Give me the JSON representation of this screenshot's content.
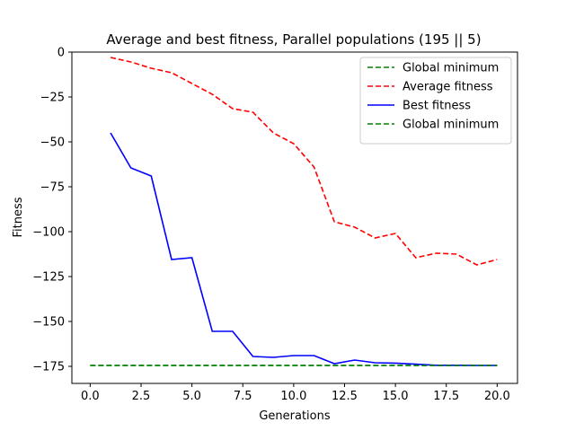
{
  "chart_data": {
    "type": "line",
    "title": "Average and best fitness, Parallel populations (195 || 5)",
    "xlabel": "Generations",
    "ylabel": "Fitness",
    "xlim": [
      -0.9,
      21.0
    ],
    "ylim": [
      -184.5,
      0
    ],
    "xticks": [
      0.0,
      2.5,
      5.0,
      7.5,
      10.0,
      12.5,
      15.0,
      17.5,
      20.0
    ],
    "xtick_labels": [
      "0.0",
      "2.5",
      "5.0",
      "7.5",
      "10.0",
      "12.5",
      "15.0",
      "17.5",
      "20.0"
    ],
    "yticks": [
      0,
      -25,
      -50,
      -75,
      -100,
      -125,
      -150,
      -175
    ],
    "ytick_labels": [
      "0",
      "−25",
      "−50",
      "−75",
      "−100",
      "−125",
      "−150",
      "−175"
    ],
    "grid": false,
    "legend_position": "top-right",
    "series": [
      {
        "name": "Global minimum",
        "color": "#008000",
        "dash": true,
        "x": [
          0,
          20
        ],
        "y": [
          -174.5,
          -174.5
        ]
      },
      {
        "name": "Average fitness",
        "color": "#ff0000",
        "dash": true,
        "x": [
          1,
          2,
          3,
          4,
          5,
          6,
          7,
          8,
          9,
          10,
          11,
          12,
          13,
          14,
          15,
          16,
          17,
          18,
          19,
          20
        ],
        "y": [
          -3,
          -5.5,
          -9,
          -11.5,
          -17.5,
          -23.5,
          -31.5,
          -33.5,
          -45,
          -51,
          -64,
          -94.5,
          -97.5,
          -103.5,
          -101,
          -114.5,
          -112,
          -112.5,
          -118.5,
          -115.5
        ]
      },
      {
        "name": "Best fitness",
        "color": "#0000ff",
        "dash": false,
        "x": [
          1,
          2,
          3,
          4,
          5,
          6,
          7,
          8,
          9,
          10,
          11,
          12,
          13,
          14,
          15,
          16,
          17,
          18,
          19,
          20
        ],
        "y": [
          -45,
          -64.5,
          -69,
          -115.5,
          -114.5,
          -155.5,
          -155.5,
          -169.5,
          -170,
          -169,
          -169,
          -173.5,
          -171.5,
          -173,
          -173.2,
          -173.8,
          -174.4,
          -174.4,
          -174.5,
          -174.5
        ]
      },
      {
        "name": "Global minimum",
        "color": "#008000",
        "dash": true,
        "x": [
          0,
          20
        ],
        "y": [
          -174.5,
          -174.5
        ]
      }
    ]
  }
}
